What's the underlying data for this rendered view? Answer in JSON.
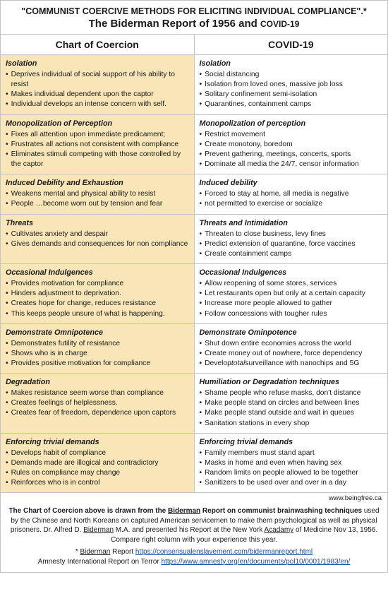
{
  "header": {
    "line1": "\"COMMUNIST COERCIVE METHODS FOR ELICITING INDIVIDUAL COMPLIANCE\".*",
    "line2a": "The Biderman Report of 1956 and ",
    "line2b": "COVID-19"
  },
  "columns": {
    "left": "Chart of Coercion",
    "right": "COVID-19"
  },
  "rows": [
    {
      "left": {
        "title": "Isolation",
        "items": [
          "Deprives individual of social support of his ability to resist",
          "Makes individual dependent upon the captor",
          "Individual develops an intense concern with self."
        ]
      },
      "right": {
        "title": "Isolation",
        "items": [
          "Social distancing",
          "Isolation from loved ones, massive job loss",
          "Solitary confinement semi-isolation",
          "Quarantines, containment camps"
        ]
      }
    },
    {
      "left": {
        "title": "Monopolization of Perception",
        "items": [
          "Fixes all attention upon immediate predicament;",
          "Frustrates all actions not consistent with compliance",
          "Eliminates stimuli competing with those controlled by the captor"
        ]
      },
      "right": {
        "title": "Monopolization of perception",
        "items": [
          "Restrict movement",
          "Create monotony, boredom",
          "Prevent gathering, meetings, concerts, sports",
          "Dominate all media the 24/7, censor information"
        ]
      }
    },
    {
      "left": {
        "title": "Induced Debility and Exhaustion",
        "items": [
          "Weakens mental and physical ability to resist",
          "People …become worn out by tension and fear"
        ]
      },
      "right": {
        "title": "Induced debility",
        "items": [
          "Forced to stay at home, all media is negative",
          "not permitted to exercise or socialize"
        ]
      }
    },
    {
      "left": {
        "title": "Threats",
        "items": [
          "Cultivates anxiety and despair",
          "Gives demands and consequences for non compliance"
        ]
      },
      "right": {
        "title": "Threats and Intimidation",
        "items": [
          "Threaten to close business, levy fines",
          "Predict extension of quarantine, force vaccines",
          "Create containment camps"
        ]
      }
    },
    {
      "left": {
        "title": "Occasional Indulgences",
        "items": [
          "Provides motivation for compliance",
          "Hinders adjustment to deprivation.",
          "Creates hope for change, reduces resistance",
          "This keeps people unsure of what is happening."
        ]
      },
      "right": {
        "title": "Occasional Indulgences",
        "items": [
          "Allow reopening of some stores, services",
          "Let restaurants open but only at a certain capacity",
          "Increase more people allowed to gather",
          "Follow concessions with tougher rules"
        ]
      }
    },
    {
      "left": {
        "title": "Demonstrate Omnipotence",
        "items": [
          "Demonstrates futility of resistance",
          "Shows who is in charge",
          "Provides positive motivation for compliance"
        ]
      },
      "right": {
        "title": "Demonstrate Ominpotence",
        "items": [
          "Shut down entire economies across the world",
          "Create money out of nowhere, force dependency",
          "Develop total surveillance with nanochips and 5G"
        ]
      }
    },
    {
      "left": {
        "title": "Degradation",
        "items": [
          "Makes resistance seem worse than compliance",
          "Creates feelings of helplessness.",
          "Creates fear of freedom, dependence upon captors"
        ]
      },
      "right": {
        "title": "Humiliation or Degradation techniques",
        "items": [
          "Shame people who refuse masks, don't distance",
          "Make people stand on circles and between lines",
          "Make people stand outside and wait in queues",
          "Sanitation stations in every shop"
        ]
      }
    },
    {
      "left": {
        "title": "Enforcing trivial demands",
        "items": [
          "Develops habit of compliance",
          "Demands made are illogical and contradictory",
          "Rules on compliance may change",
          "Reinforces who is in control"
        ]
      },
      "right": {
        "title": "Enforcing trivial demands",
        "items": [
          "Family members must stand apart",
          "Masks in home and even when having sex",
          "Random limits on people allowed to be together",
          "Sanitizers to be used over and over in a day"
        ]
      }
    }
  ],
  "source_url": "www.beingfree.ca",
  "footer": {
    "p1a": "The Chart of Coercion above is drawn from the ",
    "p1b": "Biderman",
    "p1c": " Report on communist brainwashing techniques",
    "p2": " used by the Chinese and North Koreans on captured American servicemen to make them psychological  as well as physical prisoners.  Dr. Alfred D. ",
    "p2b": "Biderman",
    "p2c": " M.A. and presented his Report at the New York ",
    "p2d": "Acadamy",
    "p2e": " of Medicine Nov 13, 1956.  Compare right column with your experience this year.",
    "p3a": "* ",
    "p3b": "Biderman",
    "p3c": " Report  ",
    "link1": "https://consensualenslavement.com/bidermanreport.html",
    "p4": "Amnesty International Report on Terror ",
    "link2": "https://www.amnesty.org/en/documents/pol10/0001/1983/en/"
  }
}
